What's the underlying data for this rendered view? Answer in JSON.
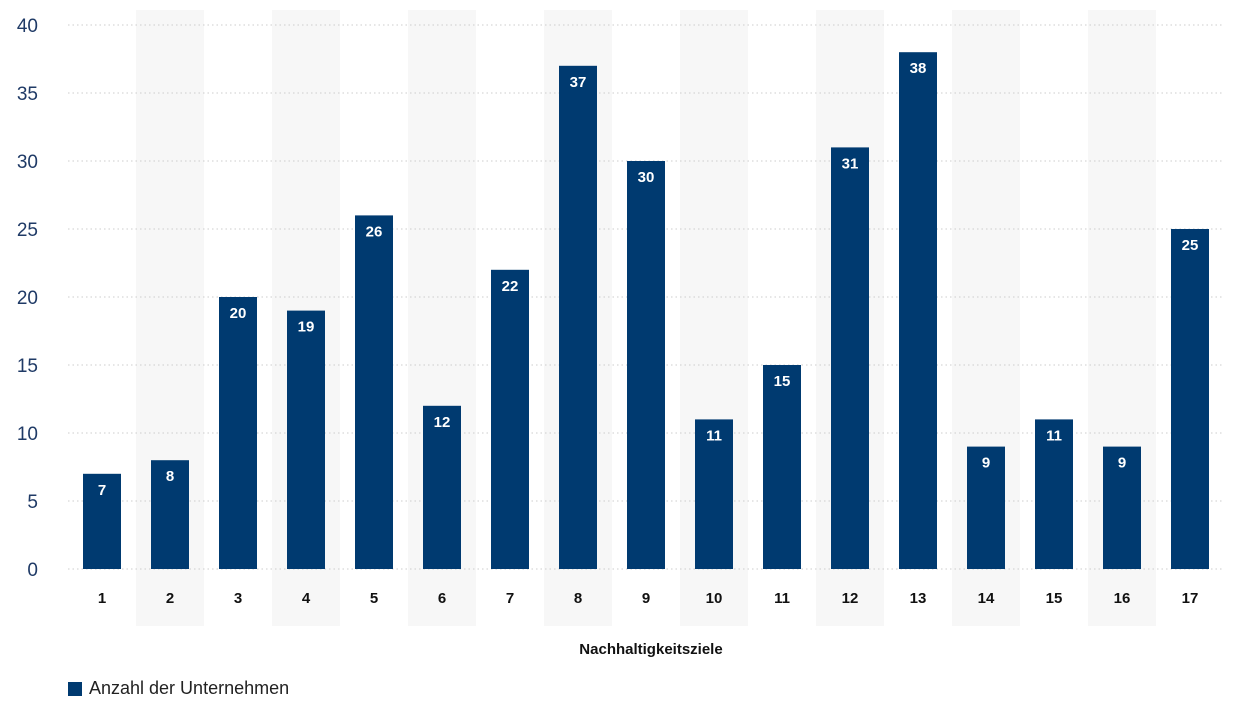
{
  "chart_data": {
    "type": "bar",
    "categories": [
      "1",
      "2",
      "3",
      "4",
      "5",
      "6",
      "7",
      "8",
      "9",
      "10",
      "11",
      "12",
      "13",
      "14",
      "15",
      "16",
      "17"
    ],
    "series": [
      {
        "name": "Anzahl der Unternehmen",
        "values": [
          7,
          8,
          20,
          19,
          26,
          12,
          22,
          37,
          30,
          11,
          15,
          31,
          38,
          9,
          11,
          9,
          25
        ]
      }
    ],
    "xlabel": "Nachhaltigkeitsziele",
    "ylabel": "",
    "ylim": [
      0,
      40
    ],
    "yticks": [
      0,
      5,
      10,
      15,
      20,
      25,
      30,
      35,
      40
    ],
    "grid": true,
    "data_labels": true,
    "alternating_column_bands": true,
    "legend_position": "bottom-left",
    "colors": {
      "bar": "#003a70",
      "band": "#f7f7f7",
      "grid": "#cccccc",
      "axis_text": "#1f3a66"
    }
  }
}
